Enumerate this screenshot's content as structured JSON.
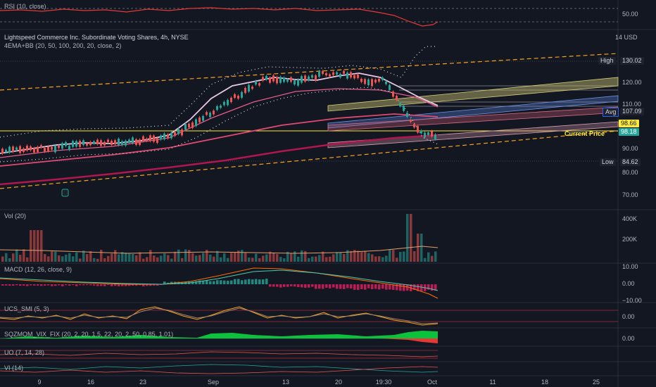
{
  "rsi": {
    "label": "RSI (10, close)",
    "axis": "50.00"
  },
  "chart": {
    "title": "Lightspeed Commerce Inc. Subordinate Voting Shares, 4h, NYSE",
    "indicator": "4EMA+BB (20, 50, 100, 200, 20, close, 2)",
    "currency": "14 USD"
  },
  "price_axis": [
    "120.00",
    "110.00",
    "90.00",
    "80.00",
    "70.00"
  ],
  "price_tags": {
    "high_label": "High",
    "high_value": "130.02",
    "avg_label": "Avg",
    "avg_value": "107.09",
    "yellow_value": "98.66",
    "current_value": "98.18",
    "current_label": "Current Price",
    "low_label": "Low",
    "low_value": "84.62"
  },
  "volume": {
    "label": "Vol (20)",
    "axis": [
      "400K",
      "200K"
    ]
  },
  "macd": {
    "label": "MACD (12, 26, close, 9)",
    "axis": [
      "10.00",
      "0.00",
      "−10.00"
    ]
  },
  "ucs": {
    "label": "UCS_SMI (5, 3)",
    "axis": "0.00"
  },
  "sqz": {
    "label": "SQZMOM_VIX_FIX (20, 2, 20, 1.5, 22, 20, 2, 50, 0.85, 1.01)",
    "axis": "0.00"
  },
  "uo": {
    "label": "UO (7, 14, 28)"
  },
  "vi": {
    "label": "VI (14)"
  },
  "time_axis": [
    "9",
    "16",
    "23",
    "Sep",
    "13",
    "20",
    "19:30",
    "Oct",
    "11",
    "18",
    "25"
  ],
  "colors": {
    "bg": "#131722",
    "up": "#26a69a",
    "down": "#ef5350",
    "accent_yellow": "#ffeb3b",
    "avg_blue": "#2962ff"
  }
}
